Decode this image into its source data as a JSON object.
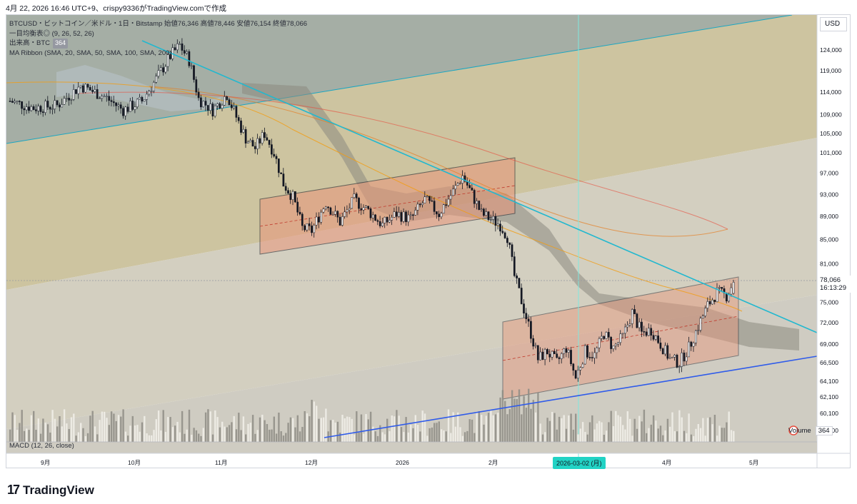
{
  "header": {
    "title": "4月 22, 2026 16:46 UTC+9、crispy9336がTradingView.comで作成"
  },
  "legend": {
    "symbol_line": "BTCUSD・ビットコイン／米ドル・1日・Bitstamp  始値76,346  高値78,446  安値76,154  終値78,066",
    "ichimoku": "一目均衡表◎ (9, 26, 52, 26)",
    "volume_label": "出来高・BTC",
    "volume_value": "364",
    "ma_ribbon": "MA Ribbon (SMA, 20, SMA, 50, SMA, 100, SMA, 200)"
  },
  "currency_button": "USD",
  "last_price": "78,066",
  "countdown": "16:13:29",
  "volume_pane": {
    "label": "Volume",
    "value": "364"
  },
  "macd_label": "MACD (12, 26, close)",
  "crosshair_date": "2026-03-02 (月)",
  "brand": {
    "logo": "17",
    "name": "TradingView"
  },
  "colors": {
    "up_candle": "#ffffff",
    "down_candle": "#131722",
    "trendline": "#22b8cf",
    "support": "#2f5bea",
    "channel_fill": "#e9967a",
    "crosshair": "#7ee8e0"
  },
  "chart_data": {
    "type": "candlestick",
    "symbol": "BTCUSD",
    "timeframe": "1D",
    "ohlc_last": {
      "open": 76346,
      "high": 78446,
      "low": 76154,
      "close": 78066
    },
    "y_ticks": [
      124000,
      119000,
      114000,
      109000,
      105000,
      101000,
      97000,
      93000,
      89000,
      85000,
      81000,
      75000,
      72000,
      69000,
      66500,
      64100,
      62100,
      60100,
      58100
    ],
    "y_tick_labels": [
      "124,000",
      "119,000",
      "114,000",
      "109,000",
      "105,000",
      "101,000",
      "97,000",
      "93,000",
      "89,000",
      "85,000",
      "81,000",
      "75,000",
      "72,000",
      "69,000",
      "66,500",
      "64,100",
      "62,100",
      "60,100",
      "58,100"
    ],
    "x_labels": [
      "9月",
      "10月",
      "11月",
      "12月",
      "2026",
      "2月",
      "4月",
      "5月"
    ],
    "ylim": [
      56600,
      126000
    ],
    "anchors": [
      [
        0,
        112000
      ],
      [
        10,
        110500
      ],
      [
        20,
        111000
      ],
      [
        30,
        115500
      ],
      [
        40,
        113000
      ],
      [
        48,
        110000
      ],
      [
        56,
        112000
      ],
      [
        62,
        117000
      ],
      [
        68,
        122500
      ],
      [
        72,
        125200
      ],
      [
        76,
        121500
      ],
      [
        80,
        112500
      ],
      [
        86,
        110000
      ],
      [
        92,
        113500
      ],
      [
        96,
        108500
      ],
      [
        100,
        104000
      ],
      [
        104,
        102000
      ],
      [
        108,
        105000
      ],
      [
        112,
        101000
      ],
      [
        116,
        95000
      ],
      [
        120,
        92500
      ],
      [
        124,
        87000
      ],
      [
        128,
        86500
      ],
      [
        134,
        91500
      ],
      [
        140,
        88000
      ],
      [
        146,
        92000
      ],
      [
        152,
        90000
      ],
      [
        158,
        87500
      ],
      [
        164,
        89500
      ],
      [
        170,
        88500
      ],
      [
        176,
        92000
      ],
      [
        182,
        89500
      ],
      [
        188,
        93500
      ],
      [
        192,
        96500
      ],
      [
        196,
        93000
      ],
      [
        200,
        89500
      ],
      [
        204,
        88500
      ],
      [
        208,
        87500
      ],
      [
        211,
        85500
      ],
      [
        214,
        79000
      ],
      [
        218,
        74000
      ],
      [
        221,
        70500
      ],
      [
        224,
        67000
      ],
      [
        228,
        68000
      ],
      [
        232,
        66500
      ],
      [
        236,
        68500
      ],
      [
        240,
        64500
      ],
      [
        244,
        68000
      ],
      [
        248,
        67500
      ],
      [
        252,
        70500
      ],
      [
        256,
        68500
      ],
      [
        260,
        70000
      ],
      [
        264,
        73500
      ],
      [
        268,
        70500
      ],
      [
        272,
        71000
      ],
      [
        276,
        69000
      ],
      [
        280,
        67000
      ],
      [
        284,
        66500
      ],
      [
        288,
        68500
      ],
      [
        292,
        71500
      ],
      [
        296,
        74500
      ],
      [
        300,
        76500
      ],
      [
        304,
        76000
      ],
      [
        307,
        78066
      ]
    ]
  }
}
